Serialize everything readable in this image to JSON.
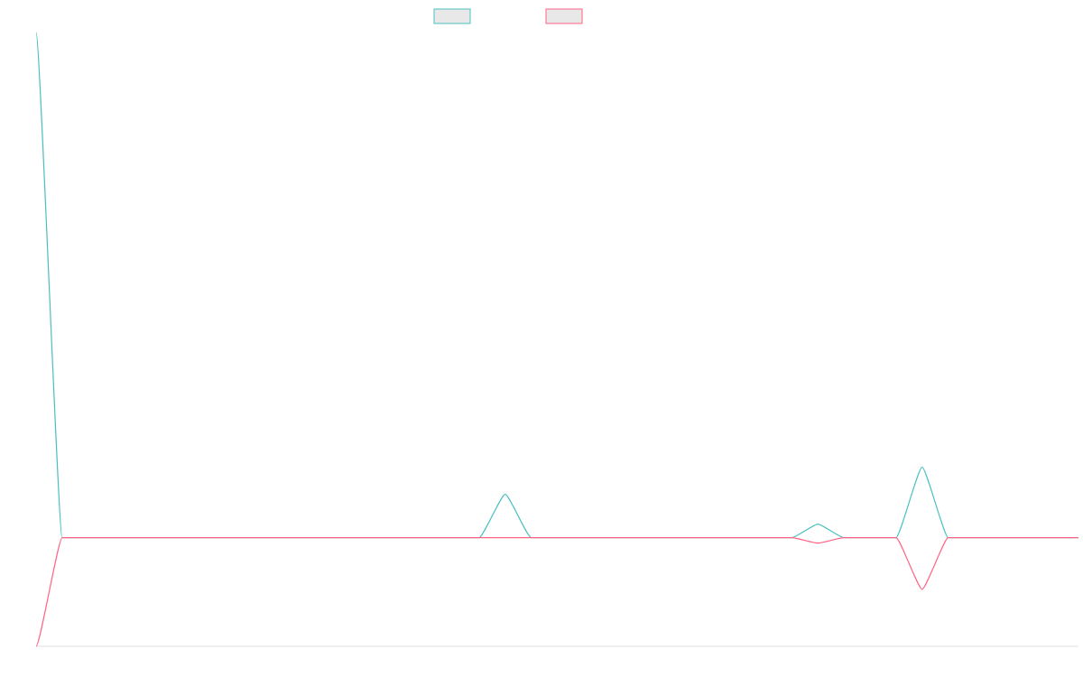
{
  "chart_data": {
    "type": "line",
    "title": "",
    "xlabel": "",
    "ylabel": "",
    "grid": false,
    "legend_position": "top-center",
    "x": [
      0,
      1,
      2,
      3,
      4,
      5,
      6,
      7,
      8,
      9,
      10,
      11,
      12,
      13,
      14,
      15,
      16,
      17,
      18,
      19,
      20,
      21,
      22,
      23,
      24,
      25,
      26,
      27,
      28,
      29,
      30,
      31,
      32,
      33,
      34,
      35,
      36,
      37,
      38,
      39,
      40
    ],
    "xlim": [
      0,
      40
    ],
    "ylim": [
      -2,
      9.3
    ],
    "series": [
      {
        "color": "#4bc0c0",
        "values": [
          9.3,
          0,
          0,
          0,
          0,
          0,
          0,
          0,
          0,
          0,
          0,
          0,
          0,
          0,
          0,
          0,
          0,
          0,
          0.8,
          0,
          0,
          0,
          0,
          0,
          0,
          0,
          0,
          0,
          0,
          0,
          0.25,
          0,
          0,
          0,
          1.3,
          0,
          0,
          0,
          0,
          0,
          0
        ]
      },
      {
        "color": "#ff6384",
        "values": [
          -2,
          0,
          0,
          0,
          0,
          0,
          0,
          0,
          0,
          0,
          0,
          0,
          0,
          0,
          0,
          0,
          0,
          0,
          0,
          0,
          0,
          0,
          0,
          0,
          0,
          0,
          0,
          0,
          0,
          0,
          -0.1,
          0,
          0,
          0,
          -0.95,
          0,
          0,
          0,
          0,
          0,
          0
        ]
      }
    ]
  }
}
